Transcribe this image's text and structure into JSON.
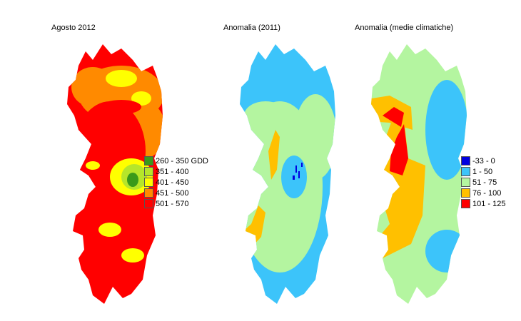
{
  "panels": [
    {
      "title": "Agosto 2012"
    },
    {
      "title": "Anomalia (2011)"
    },
    {
      "title": "Anomalia (medie climatiche)"
    }
  ],
  "legend_gdd": [
    {
      "label": "260 - 350 GDD",
      "color": "#3a9a1a"
    },
    {
      "label": "351 - 400",
      "color": "#b6e62a"
    },
    {
      "label": "401 - 450",
      "color": "#ffff00"
    },
    {
      "label": "451 - 500",
      "color": "#ff8a00"
    },
    {
      "label": "501 - 570",
      "color": "#ff0000"
    }
  ],
  "legend_anomaly": [
    {
      "label": "-33 - 0",
      "color": "#0000e0"
    },
    {
      "label": "1 - 50",
      "color": "#3cc4fa"
    },
    {
      "label": "51 - 75",
      "color": "#b4f5a0"
    },
    {
      "label": "76 - 100",
      "color": "#ffc000"
    },
    {
      "label": "101 - 125",
      "color": "#ff0000"
    }
  ]
}
